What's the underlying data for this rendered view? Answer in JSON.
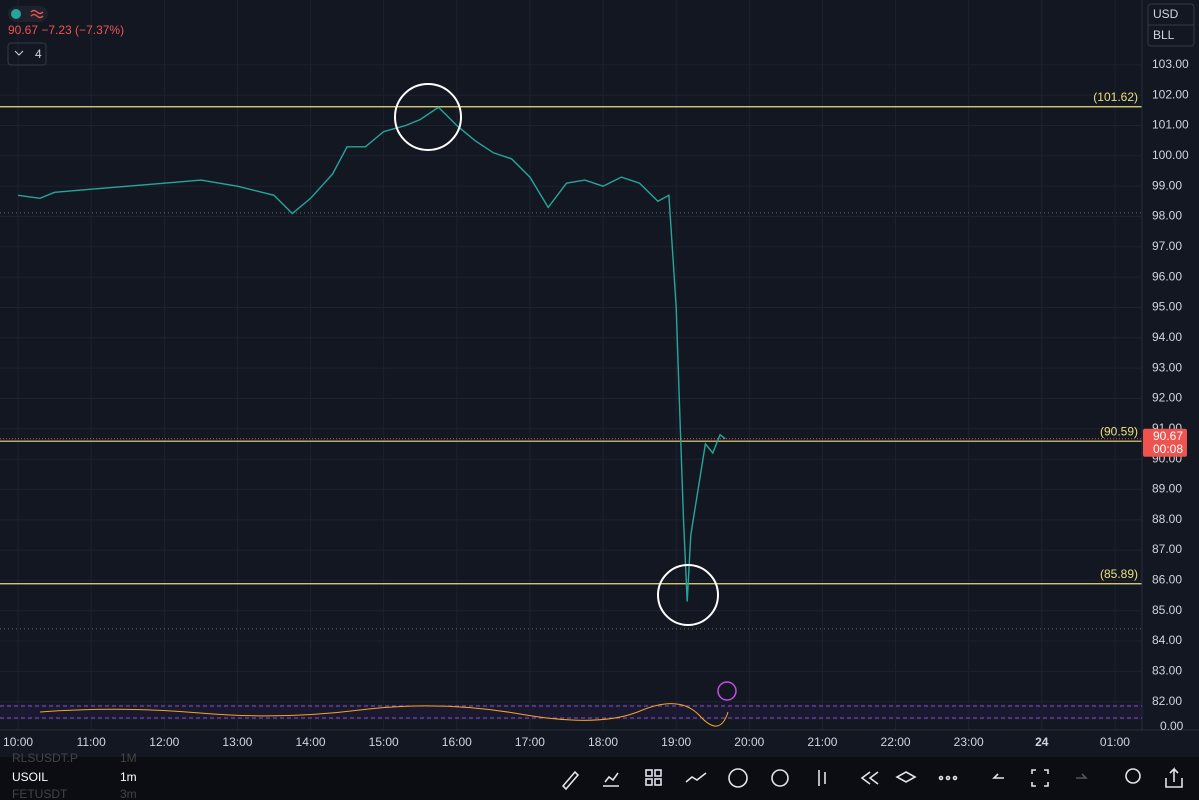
{
  "chart_data": {
    "type": "line",
    "quote": "90.67 −7.23 (−7.37%)",
    "indicator_count": "4",
    "currency": "USD",
    "unit": "BLL",
    "xlim": [
      9.753,
      25.37
    ],
    "xticks": [
      {
        "value": 10,
        "label": "10:00"
      },
      {
        "value": 11,
        "label": "11:00"
      },
      {
        "value": 12,
        "label": "12:00"
      },
      {
        "value": 13,
        "label": "13:00"
      },
      {
        "value": 14,
        "label": "14:00"
      },
      {
        "value": 15,
        "label": "15:00"
      },
      {
        "value": 16,
        "label": "16:00"
      },
      {
        "value": 17,
        "label": "17:00"
      },
      {
        "value": 18,
        "label": "18:00"
      },
      {
        "value": 19,
        "label": "19:00"
      },
      {
        "value": 20,
        "label": "20:00"
      },
      {
        "value": 21,
        "label": "21:00"
      },
      {
        "value": 22,
        "label": "22:00"
      },
      {
        "value": 23,
        "label": "23:00"
      },
      24,
      {
        "value": 25,
        "label": "01:00"
      }
    ],
    "ylim": [
      81.66,
      105.14
    ],
    "yticks": [
      {
        "value": 82,
        "label": "82.00"
      },
      {
        "value": 83,
        "label": "83.00"
      },
      {
        "value": 84,
        "label": "84.00"
      },
      {
        "value": 85,
        "label": "85.00"
      },
      {
        "value": 86,
        "label": "86.00"
      },
      {
        "value": 87,
        "label": "87.00"
      },
      {
        "value": 88,
        "label": "88.00"
      },
      {
        "value": 89,
        "label": "89.00"
      },
      {
        "value": 90,
        "label": "90.00"
      },
      {
        "value": 91,
        "label": "91.00"
      },
      {
        "value": 92,
        "label": "92.00"
      },
      {
        "value": 93,
        "label": "93.00"
      },
      {
        "value": 94,
        "label": "94.00"
      },
      {
        "value": 95,
        "label": "95.00"
      },
      {
        "value": 96,
        "label": "96.00"
      },
      {
        "value": 97,
        "label": "97.00"
      },
      {
        "value": 98,
        "label": "98.00"
      },
      {
        "value": 99,
        "label": "99.00"
      },
      {
        "value": 100,
        "label": "100.00"
      },
      {
        "value": 101,
        "label": "101.00"
      },
      {
        "value": 102,
        "label": "102.00"
      },
      {
        "value": 103,
        "label": "103.00"
      }
    ],
    "indicator_tick": "0.00",
    "grid": true,
    "series": [
      {
        "name": "USOIL",
        "color": "#26a69a",
        "x": [
          10.0,
          10.3,
          10.5,
          11.0,
          11.5,
          12.0,
          12.5,
          13.0,
          13.5,
          13.75,
          14.0,
          14.3,
          14.5,
          14.75,
          15.0,
          15.3,
          15.5,
          15.75,
          16.0,
          16.25,
          16.5,
          16.75,
          17.0,
          17.25,
          17.5,
          17.75,
          18.0,
          18.25,
          18.5,
          18.75,
          18.9,
          19.0,
          19.05,
          19.1,
          19.15,
          19.2,
          19.3,
          19.4,
          19.5,
          19.6,
          19.67
        ],
        "values": [
          98.7,
          98.6,
          98.8,
          98.9,
          99.0,
          99.1,
          99.2,
          99.0,
          98.7,
          98.1,
          98.6,
          99.4,
          100.3,
          100.3,
          100.8,
          101.0,
          101.2,
          101.6,
          101.0,
          100.5,
          100.1,
          99.9,
          99.3,
          98.3,
          99.1,
          99.2,
          99.0,
          99.3,
          99.1,
          98.5,
          98.7,
          95.0,
          91.5,
          88.0,
          85.3,
          87.5,
          89.0,
          90.5,
          90.2,
          90.8,
          90.67
        ]
      }
    ],
    "levels": [
      {
        "value": 101.62,
        "label": "(101.62)"
      },
      {
        "value": 90.59,
        "label": "(90.59)"
      },
      {
        "value": 85.89,
        "label": "(85.89)"
      }
    ],
    "dotted_levels": [
      98.12,
      84.4
    ],
    "last_price": 90.67,
    "countdown": "00:08"
  },
  "toolbar": {
    "symbol": "USOIL",
    "interval": "1m",
    "watch": [
      [
        "RLSUSDT.P",
        "1M"
      ],
      [
        "FETUSDT",
        "3m"
      ]
    ]
  }
}
